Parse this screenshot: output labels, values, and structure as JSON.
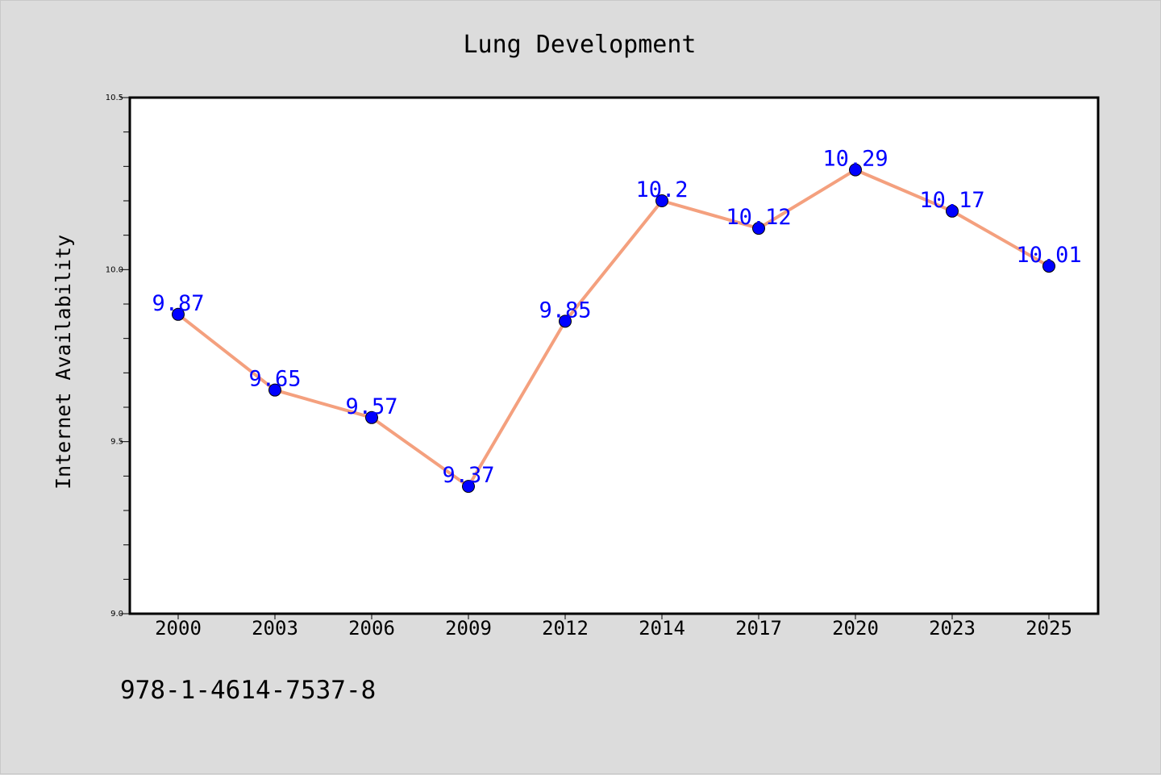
{
  "chart_data": {
    "type": "line",
    "title": "Lung Development",
    "xlabel": "",
    "ylabel": "Internet Availability",
    "categories": [
      "2000",
      "2003",
      "2006",
      "2009",
      "2012",
      "2014",
      "2017",
      "2020",
      "2023",
      "2025"
    ],
    "series": [
      {
        "values": [
          9.87,
          9.65,
          9.57,
          9.37,
          9.85,
          10.2,
          10.12,
          10.29,
          10.17,
          10.01
        ]
      }
    ],
    "data_labels": [
      "9.87",
      "9.65",
      "9.57",
      "9.37",
      "9.85",
      "10.2",
      "10.12",
      "10.29",
      "10.17",
      "10.01"
    ],
    "ylim": [
      9.0,
      10.5
    ],
    "yticks": [
      "9.0",
      "9.5",
      "10.0",
      "10.5"
    ],
    "grid": false,
    "colors": {
      "line": "#f4a07e",
      "marker": "#0000ff",
      "label": "#0000ff",
      "background": "#dcdcdc",
      "plot_bg": "#ffffff"
    }
  },
  "footer": {
    "isbn": "978-1-4614-7537-8"
  }
}
